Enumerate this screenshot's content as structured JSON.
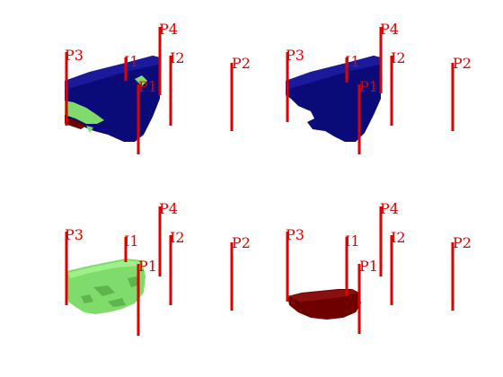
{
  "panels": [
    {
      "id": "top-left",
      "layers": [
        "blue",
        "green",
        "darkred"
      ],
      "wells": [
        {
          "label": "P3"
        },
        {
          "label": "I1"
        },
        {
          "label": "P4"
        },
        {
          "label": "I2"
        },
        {
          "label": "P1"
        },
        {
          "label": "P2"
        }
      ]
    },
    {
      "id": "top-right",
      "layers": [
        "blue"
      ],
      "wells": [
        {
          "label": "P3"
        },
        {
          "label": "I1"
        },
        {
          "label": "P4"
        },
        {
          "label": "I2"
        },
        {
          "label": "P1"
        },
        {
          "label": "P2"
        }
      ]
    },
    {
      "id": "bottom-left",
      "layers": [
        "green"
      ],
      "wells": [
        {
          "label": "P3"
        },
        {
          "label": "I1"
        },
        {
          "label": "P4"
        },
        {
          "label": "I2"
        },
        {
          "label": "P1"
        },
        {
          "label": "P2"
        }
      ]
    },
    {
      "id": "bottom-right",
      "layers": [
        "darkred"
      ],
      "wells": [
        {
          "label": "P3"
        },
        {
          "label": "I1"
        },
        {
          "label": "P4"
        },
        {
          "label": "I2"
        },
        {
          "label": "P1"
        },
        {
          "label": "P2"
        }
      ]
    }
  ],
  "colors": {
    "well": "#e00000",
    "blue": "#0a0a78",
    "green": "#7fdc6a",
    "darkred": "#6e0000"
  }
}
